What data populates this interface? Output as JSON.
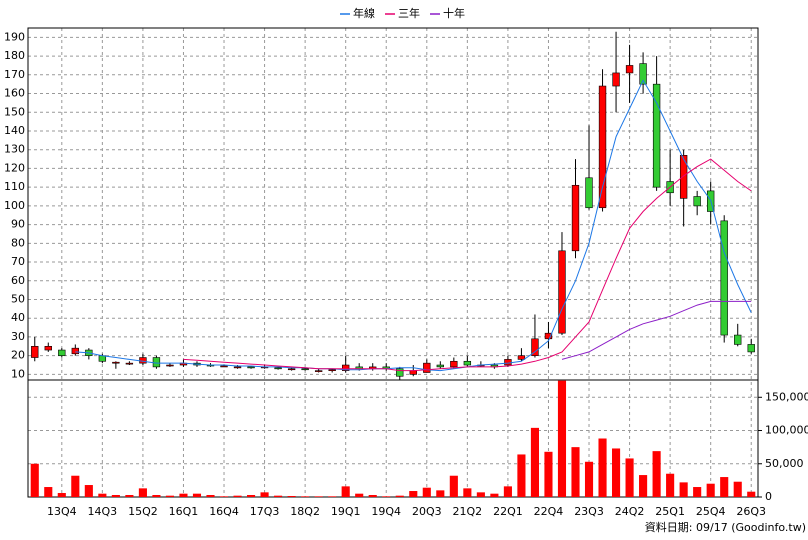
{
  "chart_data": {
    "type": "candlestick",
    "legend_position": "top",
    "grid": true,
    "categories": [
      null,
      null,
      "13Q4",
      null,
      null,
      "14Q3",
      null,
      null,
      "15Q2",
      null,
      null,
      "16Q1",
      null,
      null,
      "16Q4",
      null,
      null,
      "17Q3",
      null,
      null,
      "18Q2",
      null,
      null,
      "19Q1",
      null,
      null,
      "19Q4",
      null,
      null,
      "20Q3",
      null,
      null,
      "21Q2",
      null,
      null,
      "22Q1",
      null,
      null,
      "22Q4",
      null,
      null,
      "23Q3",
      null,
      null,
      "24Q2",
      null,
      null,
      "25Q1",
      null,
      null,
      "25Q4",
      null,
      null,
      "26Q3"
    ],
    "open": [
      19,
      23,
      23,
      21,
      23,
      20,
      16,
      16,
      16,
      19,
      15,
      15,
      16,
      15,
      14.5,
      14,
      14,
      14,
      13.5,
      13,
      13,
      12,
      12,
      12,
      14,
      13,
      14,
      13,
      10,
      11,
      15,
      14,
      17,
      15,
      15,
      15,
      18,
      20,
      29,
      32,
      76,
      115,
      99,
      164,
      171,
      176,
      165,
      113,
      104,
      105,
      108,
      92,
      31,
      26
    ],
    "high": [
      30,
      27,
      24,
      26,
      24,
      21,
      17,
      17,
      21,
      20,
      16,
      18,
      17,
      16,
      15,
      15,
      14,
      15,
      14,
      14,
      13.5,
      13,
      13,
      20,
      16,
      16,
      16,
      14,
      15,
      18,
      17,
      19,
      20,
      17,
      16,
      20,
      24,
      42,
      38,
      86,
      125,
      143,
      173,
      193,
      186,
      182,
      180,
      130,
      130,
      108,
      113,
      95,
      37,
      29
    ],
    "low": [
      17,
      22,
      19,
      20,
      18,
      16,
      13,
      15,
      15,
      13,
      14,
      14,
      14,
      14,
      14,
      13,
      13,
      13,
      12.5,
      12,
      12,
      11,
      11,
      11,
      12,
      12,
      12,
      7,
      9,
      11,
      13,
      13,
      14,
      14,
      13,
      14,
      17,
      19,
      24,
      31,
      72,
      98,
      97,
      150,
      155,
      160,
      108,
      100,
      89,
      95,
      90,
      27,
      25,
      21
    ],
    "close": [
      25,
      25,
      20,
      24,
      20,
      17,
      16.5,
      16,
      19,
      14,
      15,
      16,
      15,
      14.5,
      14.5,
      14,
      13.5,
      14,
      13,
      13,
      12.5,
      12,
      12.5,
      15,
      13,
      14,
      13,
      9,
      12,
      16,
      14,
      17,
      15,
      15,
      14,
      18,
      20,
      29,
      32,
      76,
      111,
      99,
      164,
      171,
      175,
      165,
      110,
      107,
      127,
      100,
      97,
      31,
      26,
      22
    ],
    "up_color": "#ff0000",
    "down_color": "#33cc33",
    "series": [
      {
        "name": "年線",
        "color": "#1e78e6",
        "values": [
          null,
          null,
          null,
          22,
          21.5,
          20,
          19,
          18,
          17,
          16,
          16,
          16,
          15.5,
          15,
          15,
          14.5,
          14.5,
          14,
          14,
          13.5,
          13.5,
          13,
          13,
          12.5,
          12.5,
          13,
          13,
          13.5,
          13.5,
          12.5,
          12,
          13,
          14,
          15,
          15.5,
          16,
          17,
          22,
          28,
          45,
          60,
          80,
          110,
          137,
          152,
          167,
          155,
          140,
          125,
          113,
          103,
          75,
          58,
          43
        ]
      },
      {
        "name": "三年",
        "color": "#e6006e",
        "values": [
          null,
          null,
          null,
          null,
          null,
          null,
          null,
          null,
          null,
          null,
          null,
          18,
          17.5,
          17,
          16.5,
          16,
          15.5,
          15,
          14.5,
          14,
          13.5,
          13,
          13,
          13,
          13,
          13,
          13,
          12,
          12,
          12.5,
          13,
          13.5,
          14,
          14,
          14,
          14.5,
          15.5,
          17,
          19,
          22,
          30,
          38,
          55,
          72,
          88,
          97,
          104,
          110,
          116,
          121,
          125,
          119,
          113,
          108
        ]
      },
      {
        "name": "十年",
        "color": "#8c1ec8",
        "values": [
          null,
          null,
          null,
          null,
          null,
          null,
          null,
          null,
          null,
          null,
          null,
          null,
          null,
          null,
          null,
          null,
          null,
          null,
          null,
          null,
          null,
          null,
          null,
          null,
          null,
          null,
          null,
          null,
          null,
          null,
          null,
          null,
          null,
          null,
          null,
          null,
          null,
          null,
          null,
          18,
          20,
          22,
          26,
          30,
          34,
          37,
          39,
          41,
          44,
          47,
          49,
          49,
          49,
          49
        ]
      }
    ],
    "volume": {
      "color": "#ff0000",
      "axis": "y2",
      "values": [
        50000,
        15000,
        6000,
        32000,
        18000,
        5000,
        3000,
        3000,
        13000,
        3000,
        2000,
        5000,
        5000,
        3000,
        1000,
        2000,
        3000,
        7000,
        2000,
        1500,
        1000,
        1000,
        1000,
        16000,
        5000,
        3000,
        1000,
        2000,
        9000,
        14000,
        10000,
        32000,
        13000,
        7000,
        5000,
        16000,
        64000,
        104000,
        68000,
        175000,
        75000,
        53000,
        88000,
        73000,
        58000,
        33000,
        69000,
        35000,
        22000,
        15000,
        20000,
        30000,
        23000,
        8000
      ]
    },
    "ylim": [
      7,
      195
    ],
    "yticks": [
      10,
      20,
      30,
      40,
      50,
      60,
      70,
      80,
      90,
      100,
      110,
      120,
      130,
      140,
      150,
      160,
      170,
      180,
      190
    ],
    "y2lim": [
      0,
      176000
    ],
    "y2ticks": [
      0,
      {
        "value": 50000,
        "label": "50,000"
      },
      {
        "value": 100000,
        "label": "100,000"
      },
      {
        "value": 150000,
        "label": "150,000"
      }
    ],
    "footnote": "資料日期: 09/17 (Goodinfo.tw)"
  }
}
